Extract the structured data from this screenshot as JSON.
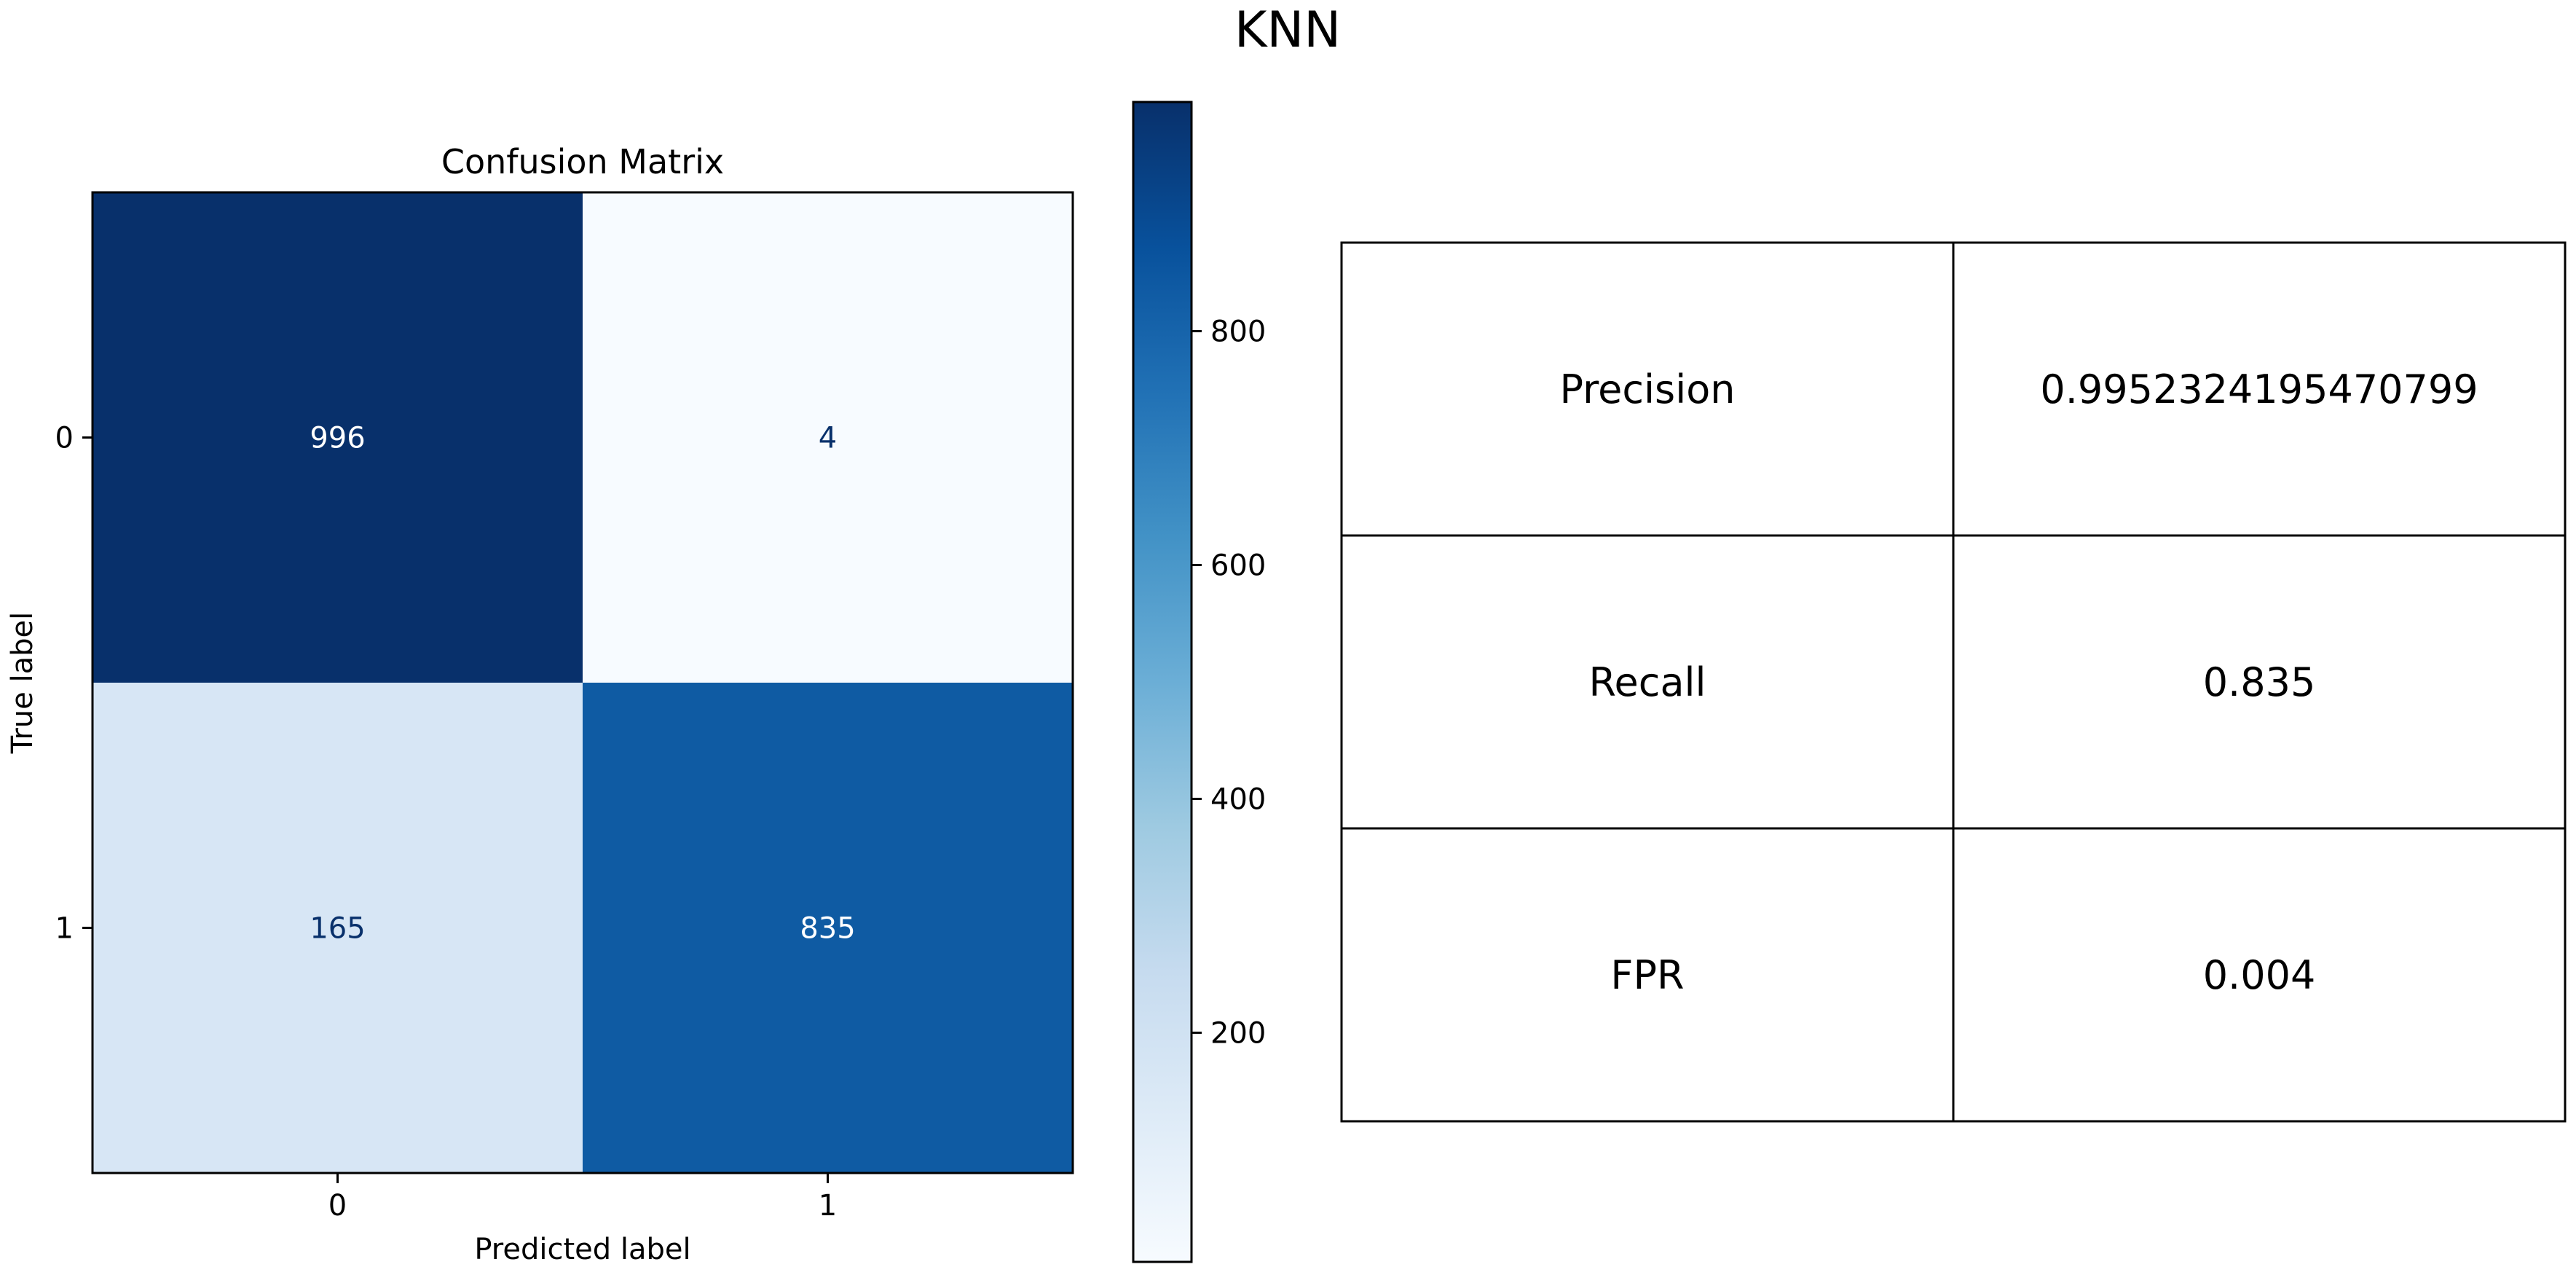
{
  "figure": {
    "title": "KNN"
  },
  "chart_data": [
    {
      "type": "heatmap",
      "title": "Confusion Matrix",
      "xlabel": "Predicted label",
      "ylabel": "True label",
      "x_categories": [
        "0",
        "1"
      ],
      "y_categories": [
        "0",
        "1"
      ],
      "values": [
        [
          996,
          4
        ],
        [
          165,
          835
        ]
      ],
      "value_labels": [
        [
          "996",
          "4"
        ],
        [
          "165",
          "835"
        ]
      ],
      "colormap": "Blues",
      "clim": [
        4,
        996
      ],
      "colorbar_ticks": [
        200,
        400,
        600,
        800
      ],
      "colorbar_tick_labels": [
        "200",
        "400",
        "600",
        "800"
      ],
      "text_color_dark_cells": "#ffffff",
      "text_color_light_cells": "#08306b"
    },
    {
      "type": "table",
      "rows": [
        {
          "metric": "Precision",
          "value": "0.9952324195470799"
        },
        {
          "metric": "Recall",
          "value": "0.835"
        },
        {
          "metric": "FPR",
          "value": "0.004"
        }
      ]
    }
  ]
}
